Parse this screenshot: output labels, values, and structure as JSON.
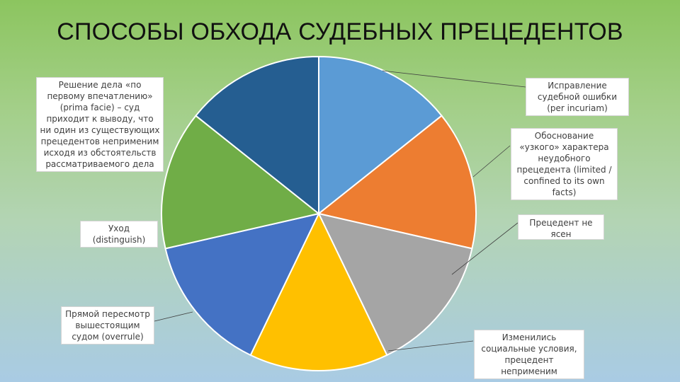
{
  "title": "СПОСОБЫ ОБХОДА СУДЕБНЫХ ПРЕЦЕДЕНТОВ",
  "chart_data": {
    "type": "pie",
    "slices": [
      {
        "label": "Исправление судебной ошибки (per incuriam)",
        "value": 1,
        "color": "#5b9bd5"
      },
      {
        "label": "Обоснование «узкого» характера неудобного прецедента (limited / confined to its own facts)",
        "value": 1,
        "color": "#ed7d31"
      },
      {
        "label": "Прецедент не ясен",
        "value": 1,
        "color": "#a5a5a5"
      },
      {
        "label": "Изменились социальные условия, прецедент неприменим",
        "value": 1,
        "color": "#ffc000"
      },
      {
        "label": "Прямой пересмотр вышестоящим судом (overrule)",
        "value": 1,
        "color": "#4472c4"
      },
      {
        "label": "Уход (distinguish)",
        "value": 1,
        "color": "#70ad47"
      },
      {
        "label": "Решение дела «по первому впечатлению» (prima facie) – суд приходит к выводу, что ни один из существующих прецедентов неприменим исходя из обстоятельств рассматриваемого дела",
        "value": 1,
        "color": "#255e91"
      }
    ]
  }
}
